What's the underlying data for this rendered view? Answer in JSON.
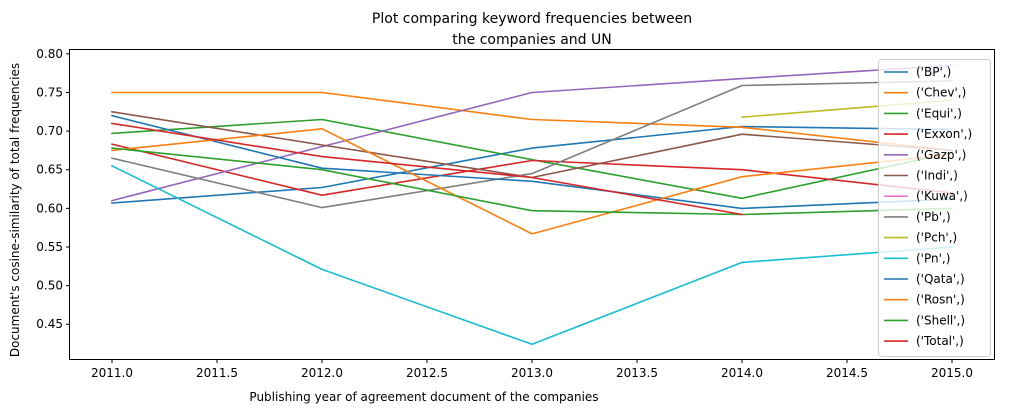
{
  "chart_data": {
    "type": "line",
    "title_lines": [
      "Plot comparing keyword frequencies between",
      "the companies and UN"
    ],
    "xlabel": "Publishing year of agreement document of the companies",
    "ylabel": "Document's cosine-similarity of total frequencies",
    "xlim": [
      2010.8,
      2015.2
    ],
    "ylim": [
      0.405,
      0.805
    ],
    "xticks": [
      2011.0,
      2011.5,
      2012.0,
      2012.5,
      2013.0,
      2013.5,
      2014.0,
      2014.5,
      2015.0
    ],
    "xtick_labels": [
      "2011.0",
      "2011.5",
      "2012.0",
      "2012.5",
      "2013.0",
      "2013.5",
      "2014.0",
      "2014.5",
      "2015.0"
    ],
    "yticks": [
      0.45,
      0.5,
      0.55,
      0.6,
      0.65,
      0.7,
      0.75,
      0.8
    ],
    "ytick_labels": [
      "0.45",
      "0.50",
      "0.55",
      "0.60",
      "0.65",
      "0.70",
      "0.75",
      "0.80"
    ],
    "legend_position": "upper-right",
    "grid": false,
    "series": [
      {
        "name": "('BP',)",
        "color": "#1f77b4",
        "x": [
          2011,
          2012,
          2013,
          2014,
          2015
        ],
        "y": [
          0.607,
          0.627,
          0.678,
          0.706,
          0.702
        ]
      },
      {
        "name": "('Chev',)",
        "color": "#ff7f0e",
        "x": [
          2011,
          2012,
          2013,
          2014,
          2015
        ],
        "y": [
          0.75,
          0.75,
          0.715,
          0.705,
          0.675
        ]
      },
      {
        "name": "('Equi',)",
        "color": "#2ca02c",
        "x": [
          2011,
          2012,
          2013,
          2014,
          2015
        ],
        "y": [
          0.697,
          0.715,
          0.663,
          0.613,
          0.672
        ]
      },
      {
        "name": "('Exxon',)",
        "color": "#d62728",
        "x": [
          2011,
          2012,
          2013,
          2014,
          2015
        ],
        "y": [
          0.683,
          0.617,
          0.662,
          0.65,
          0.62
        ]
      },
      {
        "name": "('Gazp',)",
        "color": "#9467bd",
        "x": [
          2011,
          2012,
          2013,
          2014,
          2015
        ],
        "y": [
          0.61,
          0.68,
          0.75,
          0.768,
          0.785
        ]
      },
      {
        "name": "('Indi',)",
        "color": "#8c564b",
        "x": [
          2011,
          2012,
          2013,
          2014,
          2015
        ],
        "y": [
          0.725,
          0.682,
          0.64,
          0.696,
          0.675
        ]
      },
      {
        "name": "('Kuwa',)",
        "color": "#e377c2",
        "x": [],
        "y": []
      },
      {
        "name": "('Pb',)",
        "color": "#7f7f7f",
        "x": [
          2011,
          2012,
          2013,
          2014,
          2015
        ],
        "y": [
          0.665,
          0.601,
          0.645,
          0.759,
          0.765
        ]
      },
      {
        "name": "('Pch',)",
        "color": "#bcbd22",
        "x": [
          2014,
          2015
        ],
        "y": [
          0.718,
          0.74
        ]
      },
      {
        "name": "('Pn',)",
        "color": "#17becf",
        "x": [
          2011,
          2012,
          2013,
          2014,
          2015
        ],
        "y": [
          0.655,
          0.521,
          0.424,
          0.53,
          0.55
        ]
      },
      {
        "name": "('Qata',)",
        "color": "#1f77b4",
        "x": [
          2011,
          2012,
          2013,
          2014,
          2015
        ],
        "y": [
          0.72,
          0.652,
          0.635,
          0.6,
          0.612
        ]
      },
      {
        "name": "('Rosn',)",
        "color": "#ff7f0e",
        "x": [
          2011,
          2012,
          2013,
          2014,
          2015
        ],
        "y": [
          0.675,
          0.703,
          0.567,
          0.641,
          0.67
        ]
      },
      {
        "name": "('Shell',)",
        "color": "#2ca02c",
        "x": [
          2011,
          2012,
          2013,
          2014,
          2015
        ],
        "y": [
          0.678,
          0.65,
          0.597,
          0.592,
          0.6
        ]
      },
      {
        "name": "('Total',)",
        "color": "#d62728",
        "x": [
          2011,
          2012,
          2013,
          2014
        ],
        "y": [
          0.71,
          0.667,
          0.64,
          0.592
        ]
      }
    ]
  }
}
